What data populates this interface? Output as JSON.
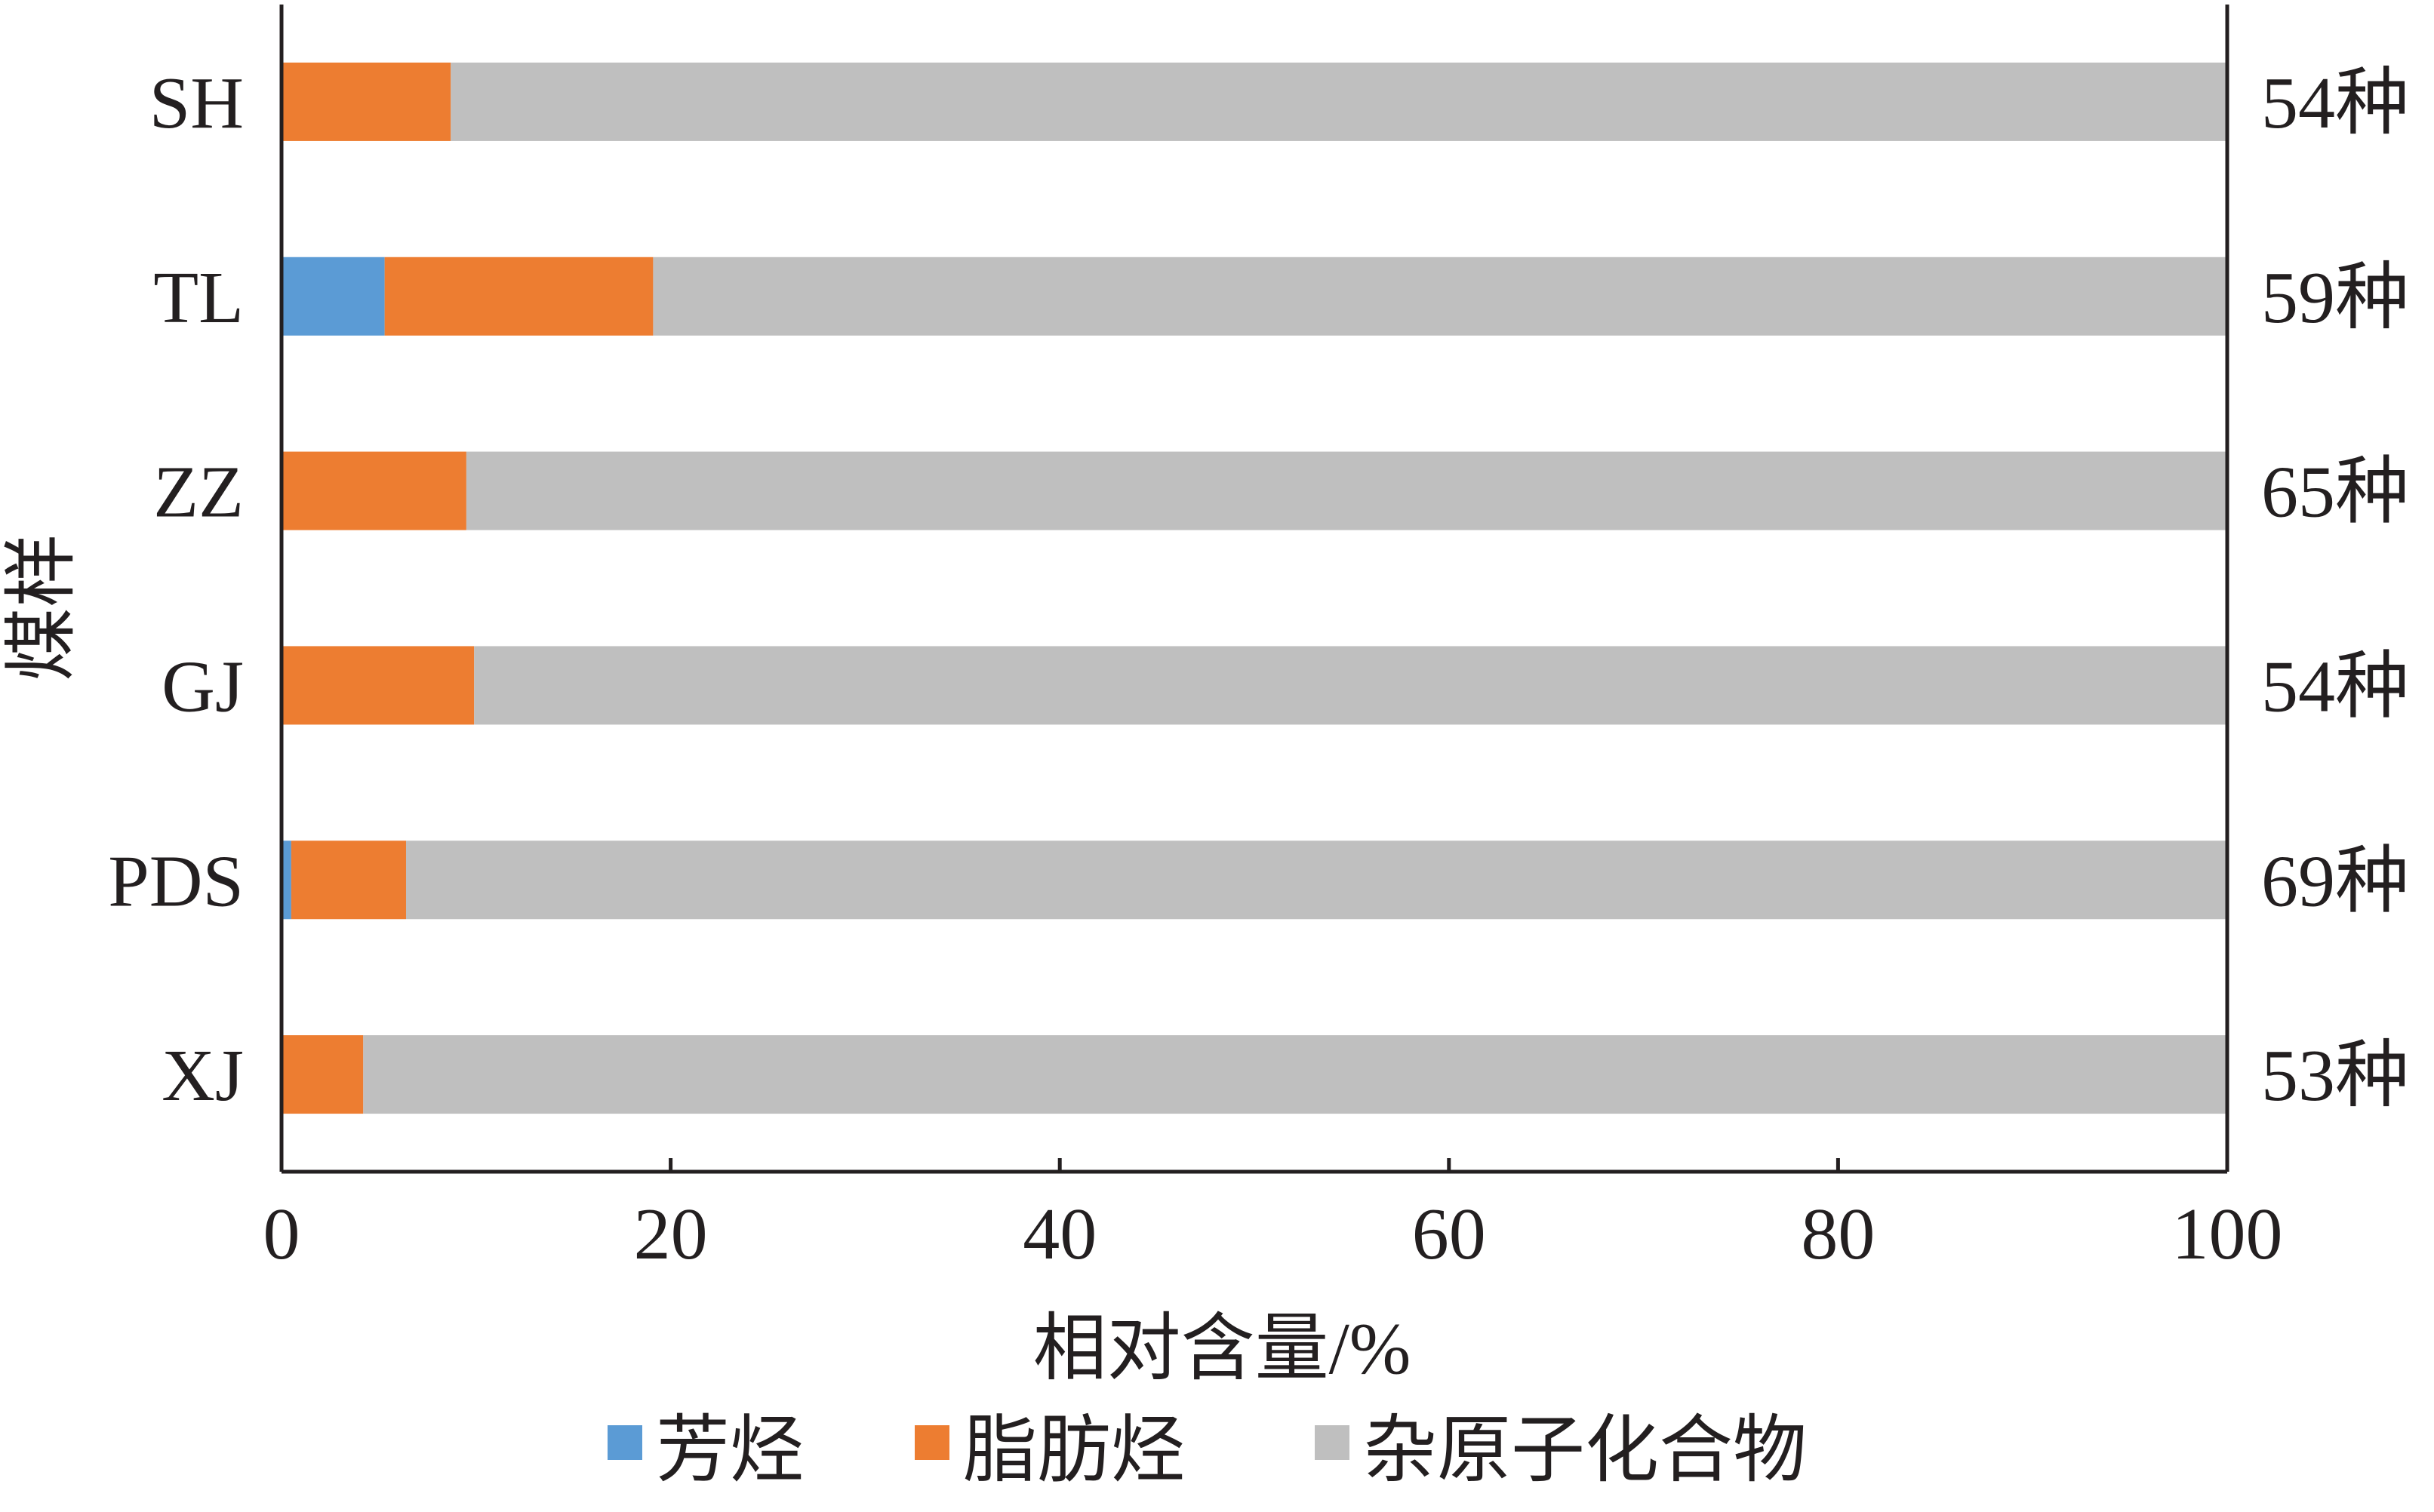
{
  "chart_data": {
    "type": "bar",
    "orientation": "horizontal",
    "stacked": true,
    "categories": [
      "SH",
      "TL",
      "ZZ",
      "GJ",
      "PDS",
      "XJ"
    ],
    "series": [
      {
        "name": "芳烃",
        "color": "#5b9bd5",
        "values": [
          0,
          5.3,
          0,
          0,
          0.5,
          0
        ]
      },
      {
        "name": "脂肪烃",
        "color": "#ed7d31",
        "values": [
          8.7,
          13.8,
          9.5,
          9.9,
          5.9,
          4.2
        ]
      },
      {
        "name": "杂原子化合物",
        "color": "#bfbfbf",
        "values": [
          91.3,
          80.9,
          90.5,
          90.1,
          93.6,
          95.8
        ]
      }
    ],
    "right_labels": [
      "54种",
      "59种",
      "65种",
      "54种",
      "69种",
      "53种"
    ],
    "xlim": [
      0,
      100
    ],
    "xticks": [
      "0",
      "20",
      "40",
      "60",
      "80",
      "100"
    ],
    "xlabel": "相对含量/%",
    "ylabel": "煤样",
    "legend_position": "bottom",
    "grid": false
  }
}
